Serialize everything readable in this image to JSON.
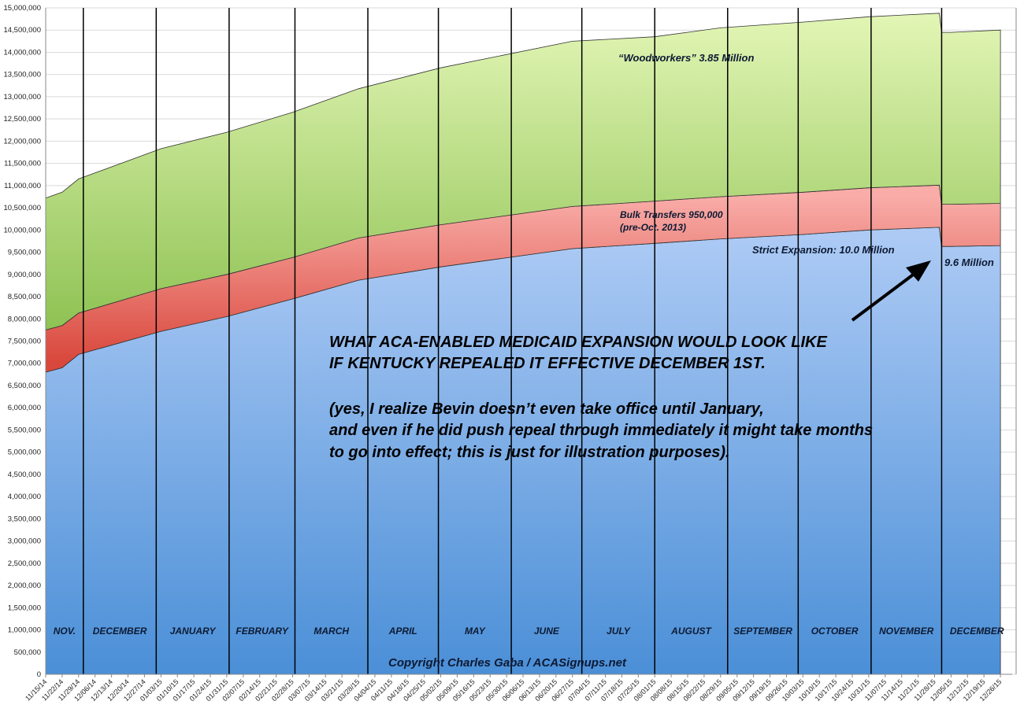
{
  "chart_data": {
    "type": "area",
    "stacked": true,
    "title": "",
    "xlabel": "",
    "ylabel": "",
    "ylim": [
      0,
      15000000
    ],
    "ytick_step": 500000,
    "xlim": [
      "11/15/14",
      "12/31/15"
    ],
    "grid": "horizontal",
    "x_tick_labels": [
      "11/15/14",
      "11/22/14",
      "11/29/14",
      "12/06/14",
      "12/13/14",
      "12/20/14",
      "12/27/14",
      "01/03/15",
      "01/10/15",
      "01/17/15",
      "01/24/15",
      "01/31/15",
      "02/07/15",
      "02/14/15",
      "02/21/15",
      "02/28/15",
      "03/07/15",
      "03/14/15",
      "03/21/15",
      "03/28/15",
      "04/04/15",
      "04/11/15",
      "04/18/15",
      "04/25/15",
      "05/02/15",
      "05/09/15",
      "05/16/15",
      "05/23/15",
      "05/30/15",
      "06/06/15",
      "06/13/15",
      "06/20/15",
      "06/27/15",
      "07/04/15",
      "07/11/15",
      "07/18/15",
      "07/25/15",
      "08/01/15",
      "08/08/15",
      "08/15/15",
      "08/22/15",
      "08/29/15",
      "09/05/15",
      "09/12/15",
      "09/19/15",
      "09/26/15",
      "10/03/15",
      "10/10/15",
      "10/17/15",
      "10/24/15",
      "10/31/15",
      "11/07/15",
      "11/14/15",
      "11/21/15",
      "11/28/15",
      "12/05/15",
      "12/12/15",
      "12/19/15",
      "12/26/15"
    ],
    "x": [
      "11/15/14",
      "11/22/14",
      "11/29/14",
      "01/03/15",
      "01/31/15",
      "02/28/15",
      "03/28/15",
      "05/02/15",
      "06/27/15",
      "08/01/15",
      "08/29/15",
      "10/03/15",
      "10/31/15",
      "11/30/15",
      "12/01/15",
      "12/05/15",
      "12/26/15"
    ],
    "series": [
      {
        "key": "strict",
        "color": "#6fa5e6",
        "values": [
          6800000,
          6900000,
          7200000,
          7720000,
          8050000,
          8450000,
          8870000,
          9170000,
          9580000,
          9700000,
          9800000,
          9900000,
          10000000,
          10060000,
          9630000,
          9630000,
          9650000
        ]
      },
      {
        "key": "bulk",
        "color": "#f08c86",
        "values": [
          950000,
          950000,
          930000,
          960000,
          950000,
          930000,
          950000,
          950000,
          950000,
          950000,
          950000,
          950000,
          950000,
          950000,
          950000,
          950000,
          950000
        ]
      },
      {
        "key": "wood",
        "color": "#c3e68a",
        "values": [
          2970000,
          3000000,
          3020000,
          3150000,
          3200000,
          3270000,
          3360000,
          3530000,
          3720000,
          3700000,
          3800000,
          3830000,
          3850000,
          3870000,
          3870000,
          3870000,
          3900000
        ]
      }
    ],
    "month_dividers": [
      "12/01/14",
      "01/01/15",
      "02/01/15",
      "03/01/15",
      "04/01/15",
      "05/01/15",
      "06/01/15",
      "07/01/15",
      "08/01/15",
      "09/01/15",
      "10/01/15",
      "11/01/15",
      "12/01/15"
    ],
    "month_labels": [
      "NOV.",
      "DECEMBER",
      "JANUARY",
      "FEBRUARY",
      "MARCH",
      "APRIL",
      "MAY",
      "JUNE",
      "JULY",
      "AUGUST",
      "SEPTEMBER",
      "OCTOBER",
      "NOVEMBER",
      "DECEMBER"
    ],
    "annotations": {
      "woodworkers": "“Woodworkers” 3.85 Million",
      "bulk_line1": "Bulk Transfers 950,000",
      "bulk_line2": "(pre-Oct. 2013)",
      "strict": "Strict Expansion: 10.0 Million",
      "after": "9.6 Million",
      "main_lines": [
        "WHAT ACA-ENABLED MEDICAID EXPANSION WOULD LOOK LIKE",
        "IF KENTUCKY REPEALED IT EFFECTIVE DECEMBER 1ST."
      ],
      "note_lines": [
        "(yes, I realize Bevin doesn’t even take office until January,",
        "and even if he did push repeal through immediately it might take months",
        "to go into effect; this is just for illustration purposes)."
      ],
      "copyright": "Copyright Charles Gaba / ACASignups.net"
    }
  }
}
